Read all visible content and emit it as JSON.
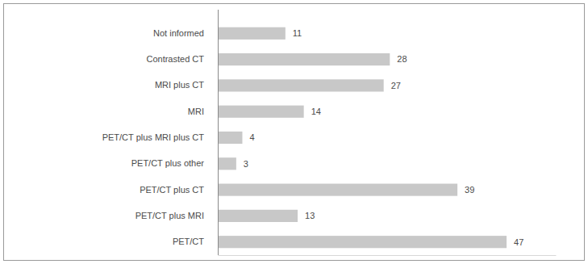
{
  "chart_data": {
    "type": "bar",
    "orientation": "horizontal",
    "categories": [
      "Not informed",
      "Contrasted CT",
      "MRI plus CT",
      "MRI",
      "PET/CT plus MRI plus CT",
      "PET/CT plus other",
      "PET/CT plus CT",
      "PET/CT plus MRI",
      "PET/CT"
    ],
    "values": [
      11,
      28,
      27,
      14,
      4,
      3,
      39,
      13,
      47
    ],
    "color": "#c8c8c8",
    "xlim": [
      0,
      55
    ],
    "data_labels": true,
    "tick_labels": "y",
    "grid": false
  }
}
